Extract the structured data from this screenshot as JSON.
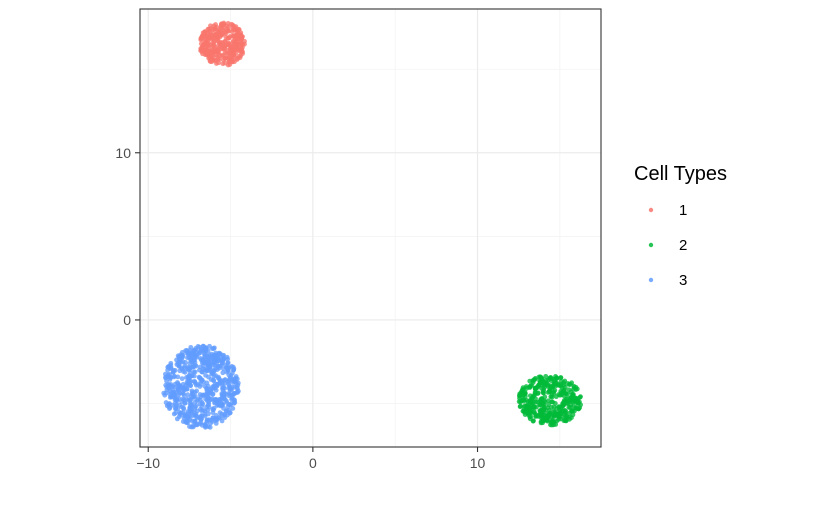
{
  "chart_data": {
    "type": "scatter",
    "title": "",
    "xlabel": "",
    "ylabel": "",
    "xlim": [
      -10.5,
      17.5
    ],
    "ylim": [
      -7.6,
      18.6
    ],
    "x_ticks": [
      -10,
      0,
      10
    ],
    "y_ticks": [
      0,
      10
    ],
    "x_tick_labels": [
      "−10",
      "0",
      "10"
    ],
    "y_tick_labels": [
      "0",
      "10"
    ],
    "grid": true,
    "legend": {
      "title": "Cell Types",
      "placement": "right"
    },
    "series": [
      {
        "name": "1",
        "color": "#F8766D",
        "clusters": [
          {
            "center": [
              -5.5,
              16.5
            ],
            "radius": [
              1.4,
              1.3
            ],
            "points": 300
          }
        ]
      },
      {
        "name": "2",
        "color": "#00BA38",
        "clusters": [
          {
            "center": [
              14.4,
              -4.8
            ],
            "radius": [
              1.9,
              1.5
            ],
            "points": 380
          }
        ]
      },
      {
        "name": "3",
        "color": "#619CFF",
        "clusters": [
          {
            "center": [
              -6.8,
              -4.0
            ],
            "radius": [
              2.3,
              2.5
            ],
            "points": 650
          }
        ]
      }
    ]
  }
}
